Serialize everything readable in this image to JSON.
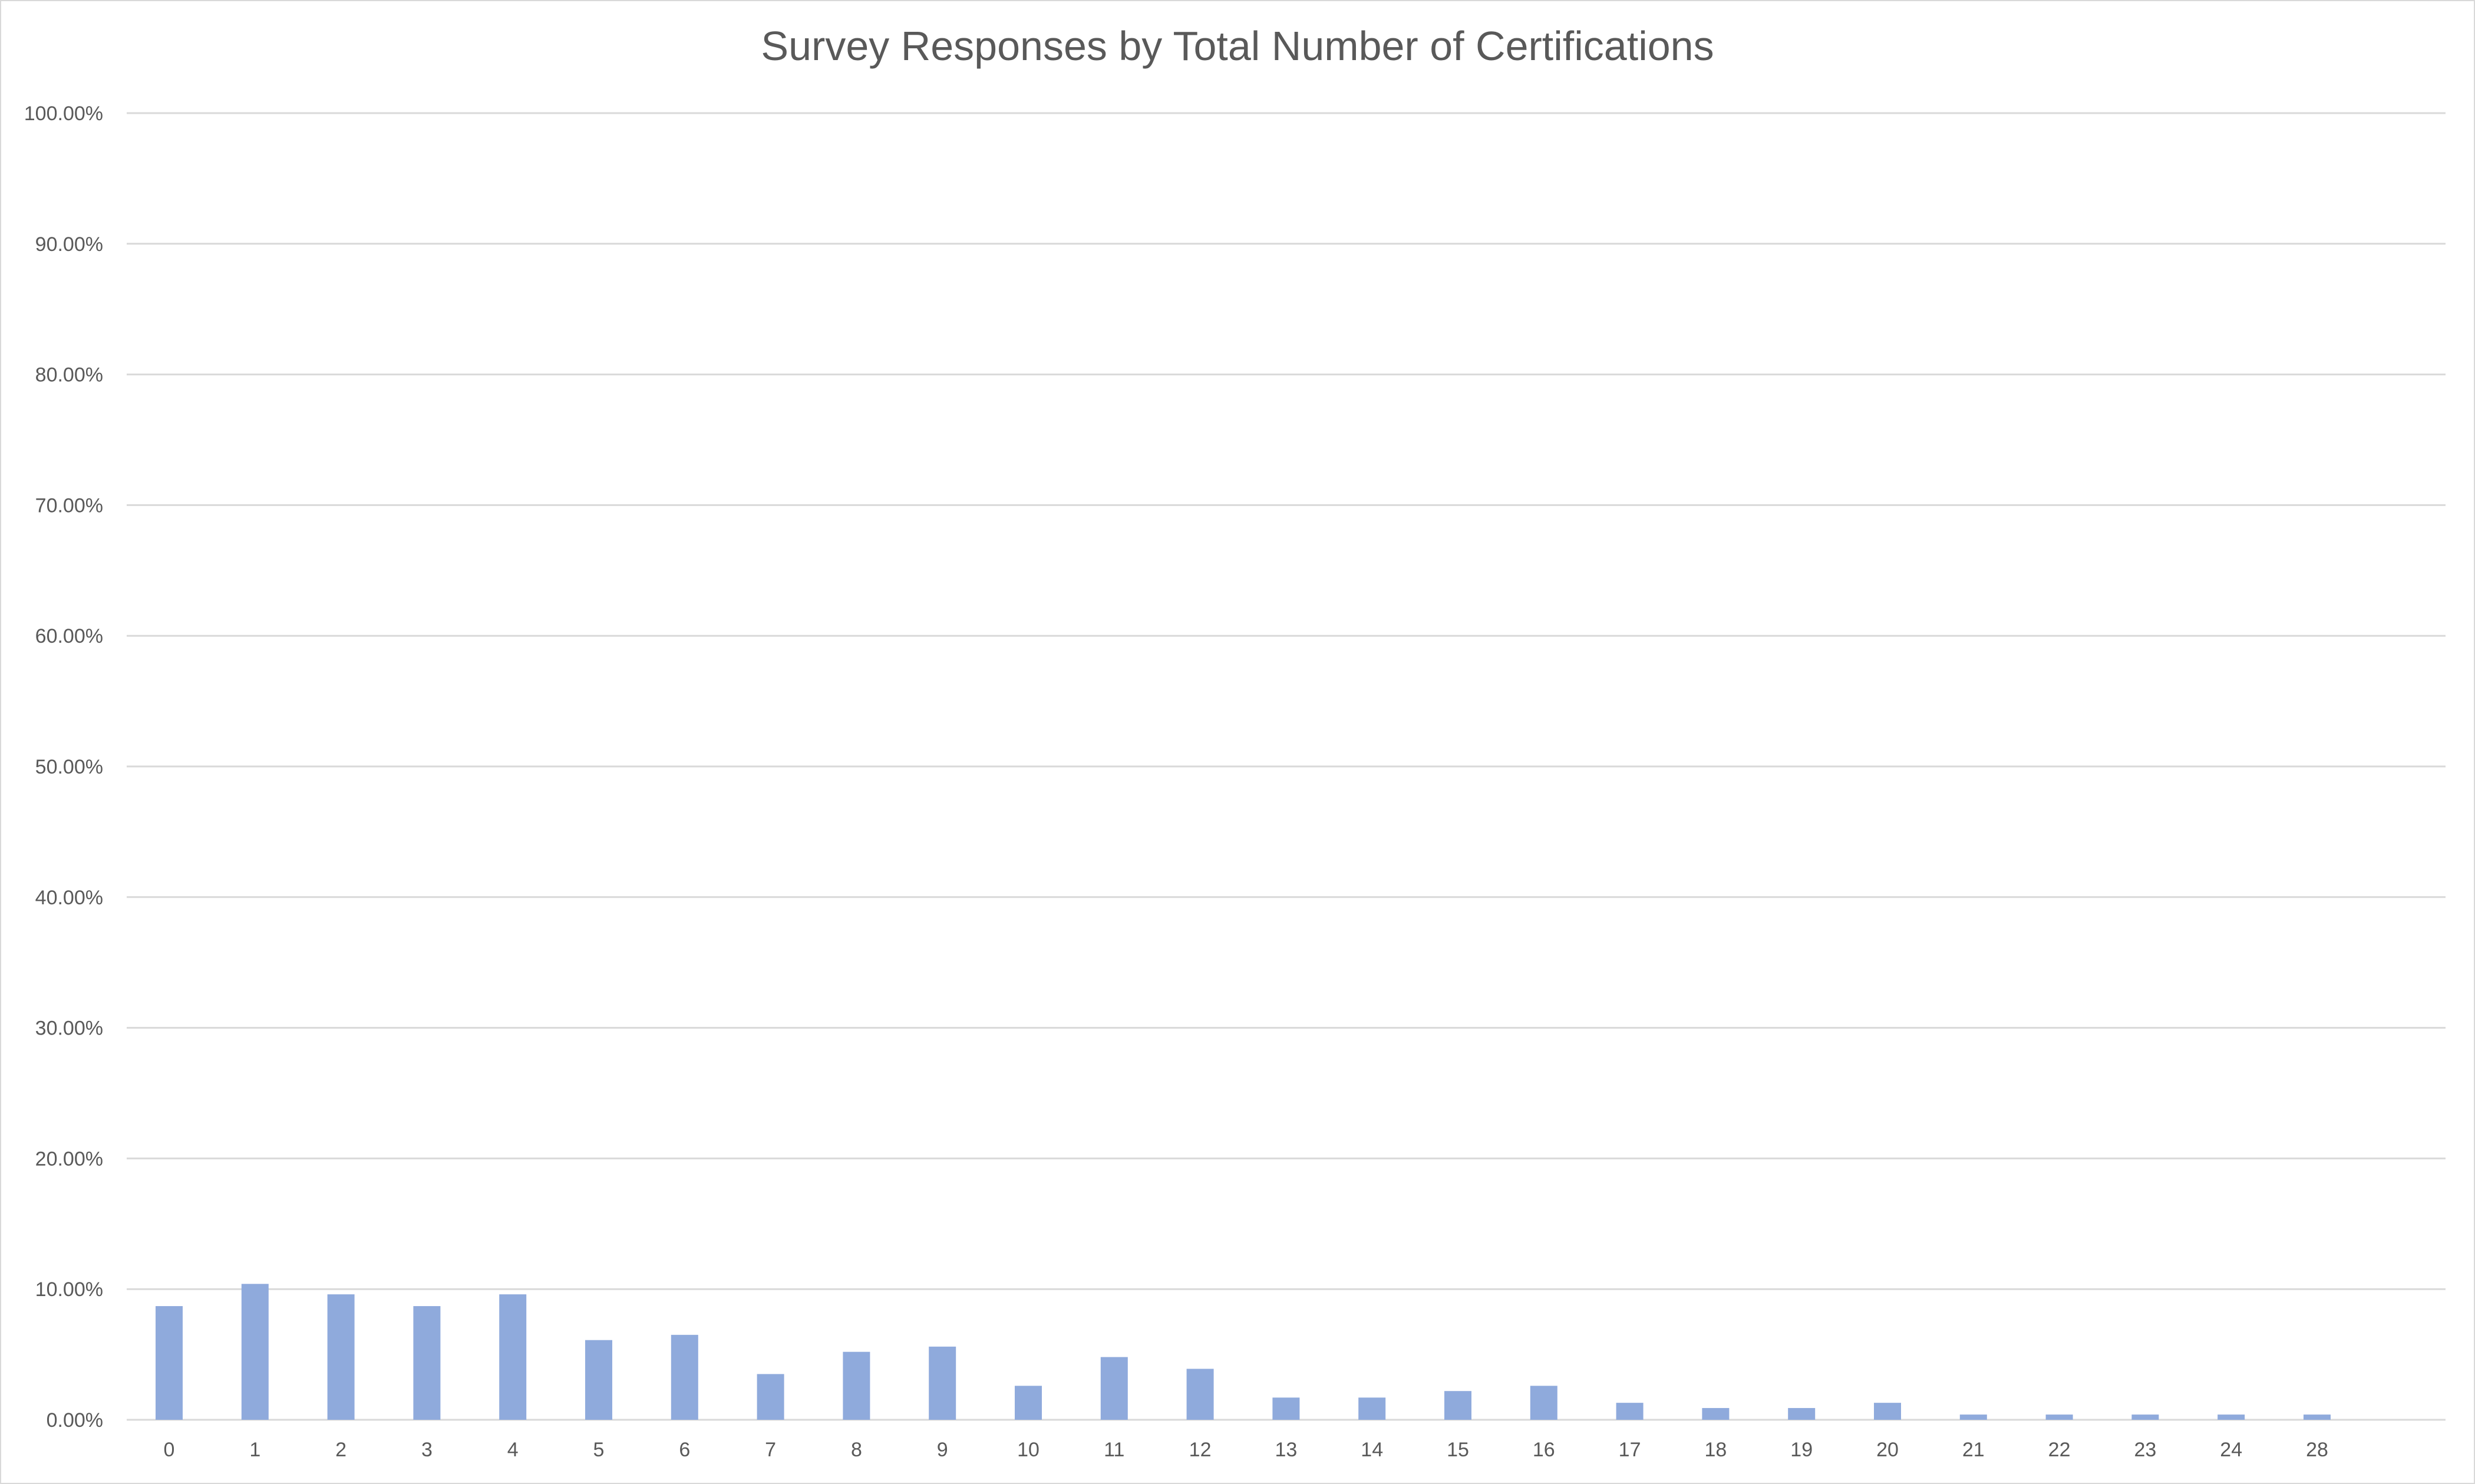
{
  "chart_data": {
    "type": "bar",
    "title": "Survey Responses by Total Number of Certifications",
    "xlabel": "",
    "ylabel": "",
    "categories": [
      "0",
      "1",
      "2",
      "3",
      "4",
      "5",
      "6",
      "7",
      "8",
      "9",
      "10",
      "11",
      "12",
      "13",
      "14",
      "15",
      "16",
      "17",
      "18",
      "19",
      "20",
      "21",
      "22",
      "23",
      "24",
      "28"
    ],
    "series": [
      {
        "values": [
          8.7,
          10.4,
          9.6,
          8.7,
          9.6,
          6.1,
          6.5,
          3.5,
          5.2,
          5.6,
          2.6,
          4.8,
          3.9,
          1.7,
          1.7,
          2.2,
          2.6,
          1.3,
          0.9,
          0.9,
          1.3,
          0.4,
          0.4,
          0.4,
          0.4,
          0.4
        ]
      }
    ],
    "ylim": [
      0,
      100
    ],
    "y_ticks": [
      "0.00%",
      "10.00%",
      "20.00%",
      "30.00%",
      "40.00%",
      "50.00%",
      "60.00%",
      "70.00%",
      "80.00%",
      "90.00%",
      "100.00%"
    ],
    "grid": true,
    "legend": "none",
    "colors": {
      "bar": "#8faadc",
      "grid": "#d9d9d9",
      "text": "#595959"
    }
  }
}
